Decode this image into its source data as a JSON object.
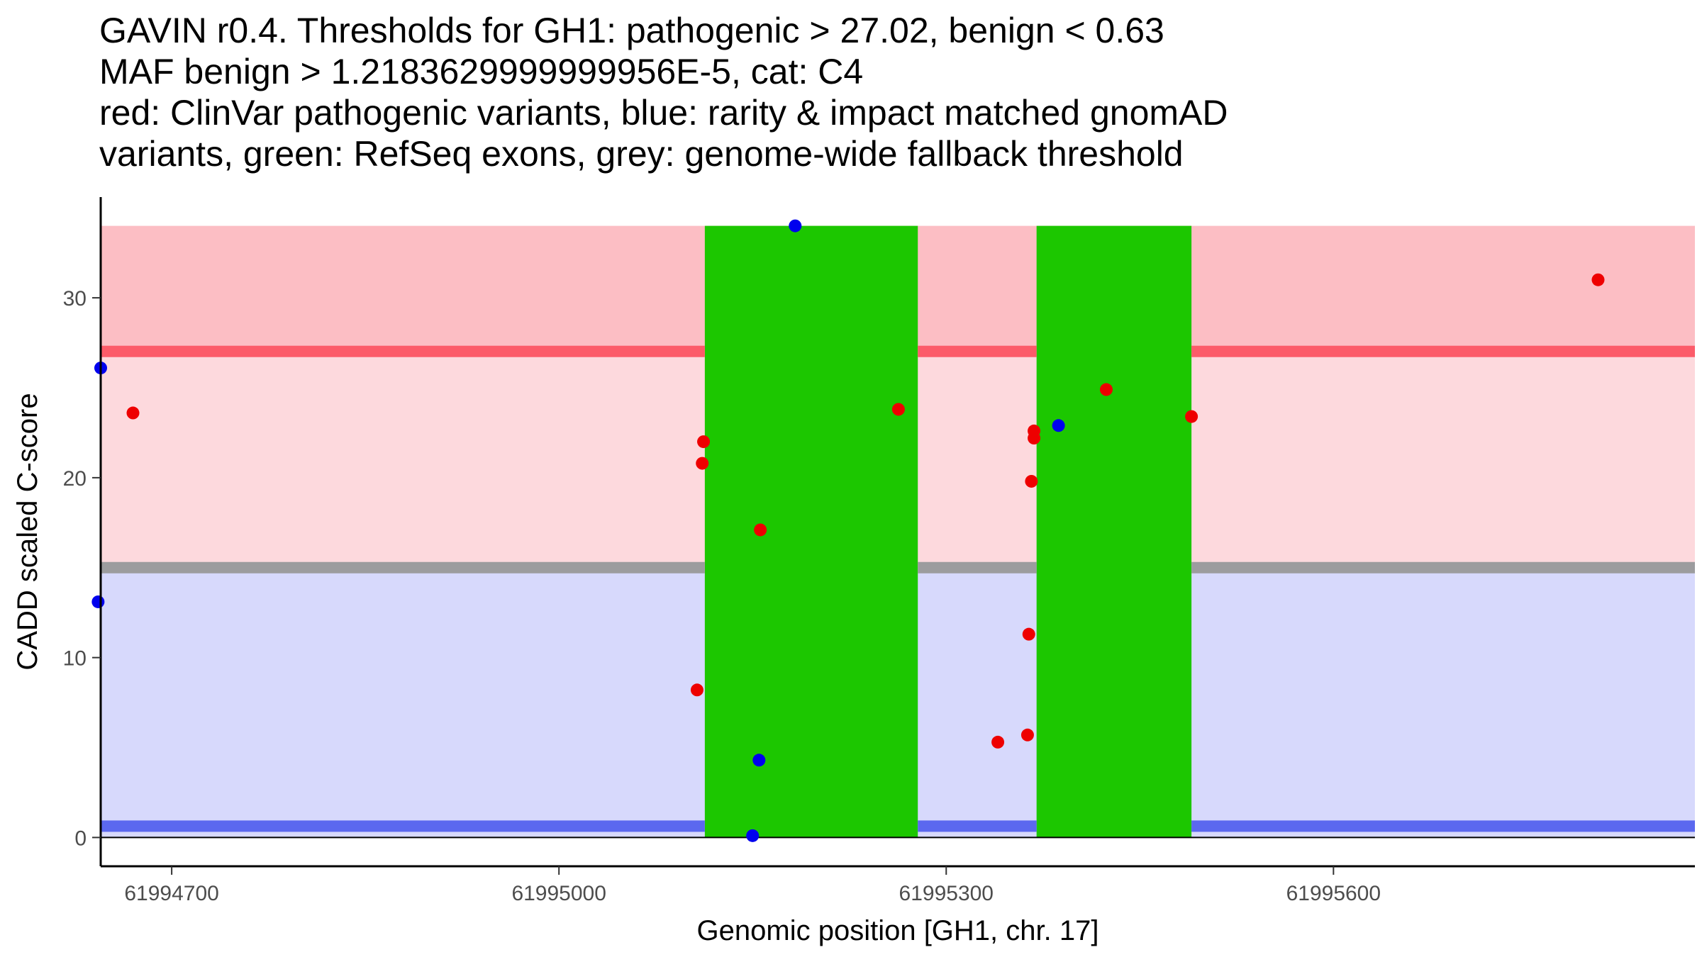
{
  "title_lines": [
    "GAVIN r0.4. Thresholds for GH1: pathogenic > 27.02, benign < 0.63",
    "MAF benign > 1.2183629999999956E-5, cat: C4",
    "red: ClinVar pathogenic variants, blue: rarity & impact matched gnomAD",
    "variants, green: RefSeq exons, grey: genome-wide fallback threshold"
  ],
  "chart_data": {
    "type": "scatter",
    "xlabel": "Genomic position [GH1, chr. 17]",
    "ylabel": "CADD scaled C-score",
    "xlim": [
      61994645,
      61995880
    ],
    "ylim": [
      -1.6,
      35.6
    ],
    "x_ticks": [
      61994700,
      61995000,
      61995300,
      61995600
    ],
    "y_ticks": [
      0,
      10,
      20,
      30
    ],
    "grid": false,
    "colors": {
      "pathogenic_region": "#fcbec4",
      "mid_region": "#fdd9dd",
      "benign_region": "#d7d9fc",
      "pathogenic_threshold_line": "#fc5b69",
      "fallback_threshold_line": "#9c9c9e",
      "benign_threshold_line": "#5b68ef",
      "exon": "#1cc700",
      "pathogenic_point": "#ee0000",
      "population_point": "#0000ee"
    },
    "regions": [
      {
        "y_from": 27.02,
        "y_to": 34,
        "color_key": "pathogenic_region"
      },
      {
        "y_from": 15.0,
        "y_to": 27.02,
        "color_key": "mid_region"
      },
      {
        "y_from": 0,
        "y_to": 15.0,
        "color_key": "benign_region"
      }
    ],
    "thresholds": [
      {
        "value": 27.02,
        "color_key": "pathogenic_threshold_line"
      },
      {
        "value": 15.0,
        "color_key": "fallback_threshold_line"
      },
      {
        "value": 0.63,
        "color_key": "benign_threshold_line"
      }
    ],
    "exons": [
      {
        "start": 61995113,
        "end": 61995278
      },
      {
        "start": 61995370,
        "end": 61995490
      }
    ],
    "y_max": 34,
    "series": [
      {
        "color_key": "pathogenic_point",
        "points": [
          [
            61994670,
            23.6
          ],
          [
            61995107,
            8.2
          ],
          [
            61995111,
            20.8
          ],
          [
            61995112,
            22.0
          ],
          [
            61995156,
            17.1
          ],
          [
            61995263,
            23.8
          ],
          [
            61995340,
            5.3
          ],
          [
            61995363,
            5.7
          ],
          [
            61995364,
            11.3
          ],
          [
            61995366,
            19.8
          ],
          [
            61995368,
            22.2
          ],
          [
            61995368,
            22.6
          ],
          [
            61995424,
            24.9
          ],
          [
            61995490,
            23.4
          ],
          [
            61995805,
            31.0
          ]
        ]
      },
      {
        "color_key": "population_point",
        "points": [
          [
            61994645,
            26.1
          ],
          [
            61994643,
            13.1
          ],
          [
            61995150,
            0.1
          ],
          [
            61995155,
            4.3
          ],
          [
            61995183,
            34.0
          ],
          [
            61995387,
            22.9
          ]
        ]
      }
    ]
  }
}
